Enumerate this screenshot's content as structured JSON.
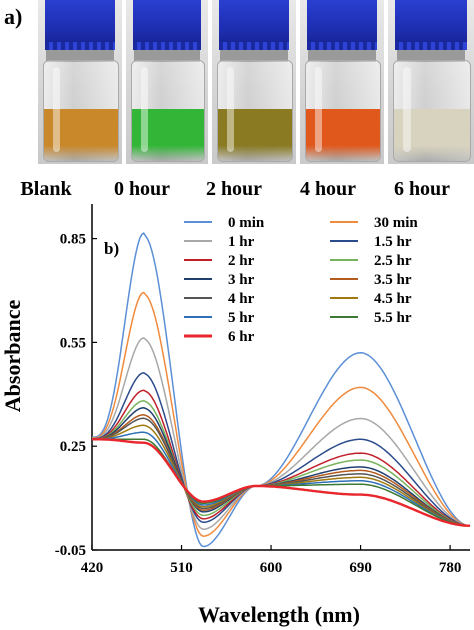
{
  "panel_a": {
    "label": "a)",
    "vials": [
      {
        "caption": "Blank",
        "liquid_color": "#c9882a"
      },
      {
        "caption": "0 hour",
        "liquid_color": "#33b637"
      },
      {
        "caption": "2 hour",
        "liquid_color": "#8a7a22"
      },
      {
        "caption": "4 hour",
        "liquid_color": "#e0581c"
      },
      {
        "caption": "6 hour",
        "liquid_color": "#d8d3bf"
      }
    ]
  },
  "chart_data": {
    "type": "line",
    "panel_label": "b)",
    "xlabel": "Wavelength (nm)",
    "ylabel": "Absorbance",
    "xlim": [
      420,
      800
    ],
    "ylim": [
      -0.05,
      0.95
    ],
    "xticks": [
      420,
      510,
      600,
      690,
      780
    ],
    "yticks": [
      -0.05,
      0.25,
      0.55,
      0.85
    ],
    "xtick_labels": [
      "420",
      "510",
      "600",
      "690",
      "780"
    ],
    "ytick_labels": [
      "-0.05",
      "0.25",
      "0.55",
      "0.85"
    ],
    "grid": false,
    "legend_position": "top-right",
    "series": [
      {
        "name": "0 min",
        "color": "#5b8fd6",
        "p1": 0.86,
        "v1": -0.04,
        "p2": 0.52
      },
      {
        "name": "30 min",
        "color": "#f08a3c",
        "p1": 0.69,
        "v1": -0.01,
        "p2": 0.42
      },
      {
        "name": "1 hr",
        "color": "#a8a8a8",
        "p1": 0.56,
        "v1": 0.01,
        "p2": 0.33
      },
      {
        "name": "1.5 hr",
        "color": "#2b4b8c",
        "p1": 0.46,
        "v1": 0.03,
        "p2": 0.27
      },
      {
        "name": "2 hr",
        "color": "#c0202a",
        "p1": 0.41,
        "v1": 0.04,
        "p2": 0.23
      },
      {
        "name": "2.5 hr",
        "color": "#77b35a",
        "p1": 0.38,
        "v1": 0.05,
        "p2": 0.21
      },
      {
        "name": "3 hr",
        "color": "#1f3f6e",
        "p1": 0.36,
        "v1": 0.06,
        "p2": 0.19
      },
      {
        "name": "3.5 hr",
        "color": "#b35a1e",
        "p1": 0.34,
        "v1": 0.065,
        "p2": 0.18
      },
      {
        "name": "4 hr",
        "color": "#555555",
        "p1": 0.33,
        "v1": 0.07,
        "p2": 0.17
      },
      {
        "name": "4.5 hr",
        "color": "#a07a10",
        "p1": 0.31,
        "v1": 0.075,
        "p2": 0.16
      },
      {
        "name": "5 hr",
        "color": "#2f6fb5",
        "p1": 0.29,
        "v1": 0.08,
        "p2": 0.15
      },
      {
        "name": "5.5 hr",
        "color": "#3c7a34",
        "p1": 0.27,
        "v1": 0.085,
        "p2": 0.14
      },
      {
        "name": "6 hr",
        "color": "#e8262b",
        "p1": 0.26,
        "v1": 0.09,
        "p2": 0.11
      }
    ]
  }
}
